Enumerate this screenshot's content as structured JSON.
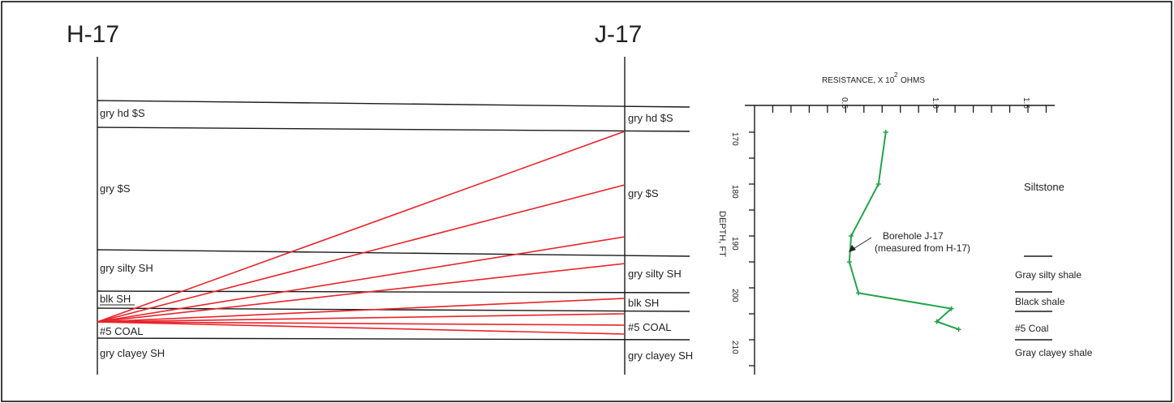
{
  "wells": {
    "left": "H-17",
    "right": "J-17"
  },
  "left_layers": [
    "gry hd $S",
    "gry $S",
    "gry silty SH",
    "blk SH",
    "#5 COAL",
    "gry clayey SH"
  ],
  "right_layers": [
    "gry hd $S",
    "gry $S",
    "gry silty SH",
    "blk SH",
    "#5 COAL",
    "gry clayey SH"
  ],
  "resistivity_log": {
    "x_axis_title": "RESISTANCE, X 10",
    "x_axis_superscript": "2",
    "x_axis_unit": "OHMS",
    "x_ticks": [
      "0.5",
      "1.0",
      "1.5"
    ],
    "y_axis_title": "DEPTH, FT",
    "y_ticks": [
      "170",
      "180",
      "190",
      "200",
      "210"
    ],
    "curve_label_line1": "Borehole J-17",
    "curve_label_line2": "(measured from H-17)",
    "lithology": [
      "Siltstone",
      "Gray silty shale",
      "Black shale",
      "#5 Coal",
      "Gray clayey shale"
    ],
    "curve_color": "#22a44a",
    "curve": [
      {
        "resistance": 0.72,
        "depth": 170
      },
      {
        "resistance": 0.68,
        "depth": 180
      },
      {
        "resistance": 0.53,
        "depth": 190
      },
      {
        "resistance": 0.52,
        "depth": 195
      },
      {
        "resistance": 0.57,
        "depth": 201
      },
      {
        "resistance": 1.08,
        "depth": 204
      },
      {
        "resistance": 1.0,
        "depth": 206.5
      },
      {
        "resistance": 1.12,
        "depth": 208
      }
    ]
  },
  "ray_color": "#e8242b"
}
